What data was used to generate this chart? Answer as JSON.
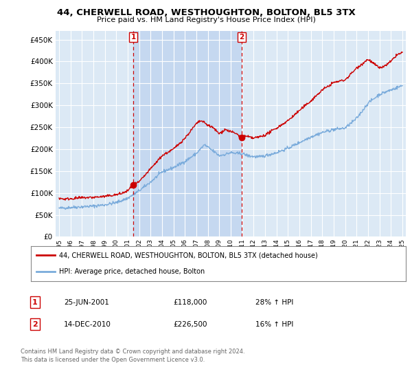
{
  "title": "44, CHERWELL ROAD, WESTHOUGHTON, BOLTON, BL5 3TX",
  "subtitle": "Price paid vs. HM Land Registry's House Price Index (HPI)",
  "ylim": [
    0,
    470000
  ],
  "yticks": [
    0,
    50000,
    100000,
    150000,
    200000,
    250000,
    300000,
    350000,
    400000,
    450000
  ],
  "xlim_start": 1994.7,
  "xlim_end": 2025.3,
  "background_color": "#ffffff",
  "plot_bg_color": "#dce9f5",
  "shade_color": "#c5d8f0",
  "grid_color": "#ffffff",
  "red_line_color": "#cc0000",
  "blue_line_color": "#7aabdb",
  "marker1_x": 2001.48,
  "marker1_y": 118000,
  "marker2_x": 2010.95,
  "marker2_y": 226500,
  "marker1_label": "25-JUN-2001",
  "marker1_price": "£118,000",
  "marker1_hpi": "28% ↑ HPI",
  "marker2_label": "14-DEC-2010",
  "marker2_price": "£226,500",
  "marker2_hpi": "16% ↑ HPI",
  "legend_line1": "44, CHERWELL ROAD, WESTHOUGHTON, BOLTON, BL5 3TX (detached house)",
  "legend_line2": "HPI: Average price, detached house, Bolton",
  "footnote": "Contains HM Land Registry data © Crown copyright and database right 2024.\nThis data is licensed under the Open Government Licence v3.0.",
  "xtick_years": [
    1995,
    1996,
    1997,
    1998,
    1999,
    2000,
    2001,
    2002,
    2003,
    2004,
    2005,
    2006,
    2007,
    2008,
    2009,
    2010,
    2011,
    2012,
    2013,
    2014,
    2015,
    2016,
    2017,
    2018,
    2019,
    2020,
    2021,
    2022,
    2023,
    2024,
    2025
  ]
}
